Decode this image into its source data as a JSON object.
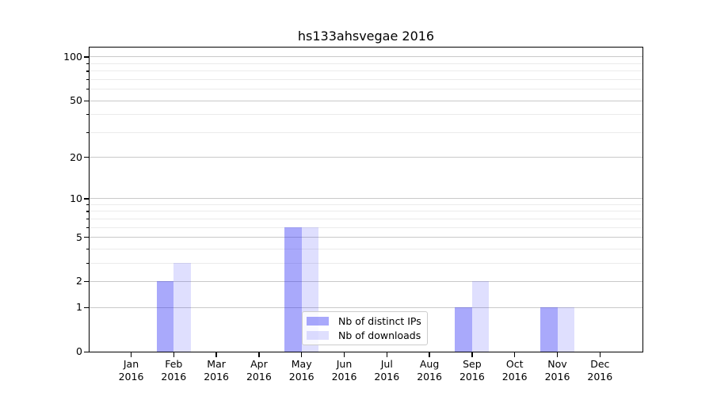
{
  "chart_data": {
    "type": "bar",
    "title": "hs133ahsvegae 2016",
    "categories": [
      "Jan 2016",
      "Feb 2016",
      "Mar 2016",
      "Apr 2016",
      "May 2016",
      "Jun 2016",
      "Jul 2016",
      "Aug 2016",
      "Sep 2016",
      "Oct 2016",
      "Nov 2016",
      "Dec 2016"
    ],
    "month_labels": [
      "Jan",
      "Feb",
      "Mar",
      "Apr",
      "May",
      "Jun",
      "Jul",
      "Aug",
      "Sep",
      "Oct",
      "Nov",
      "Dec"
    ],
    "year_label": "2016",
    "series": [
      {
        "name": "Nb of distinct IPs",
        "color": "rgba(40,40,245,0.40)",
        "values": [
          0,
          2,
          0,
          0,
          6,
          0,
          0,
          0,
          1,
          0,
          1,
          0
        ]
      },
      {
        "name": "Nb of downloads",
        "color": "rgba(40,40,245,0.15)",
        "values": [
          0,
          3,
          0,
          0,
          6,
          0,
          0,
          0,
          2,
          0,
          1,
          0
        ]
      }
    ],
    "y_axis": {
      "scale": "log1p",
      "major_ticks": [
        0,
        1,
        2,
        5,
        10,
        20,
        50,
        100
      ],
      "minor_ticks": [
        3,
        4,
        6,
        7,
        8,
        9,
        30,
        40,
        60,
        70,
        80,
        90
      ],
      "ylim": [
        0,
        115
      ]
    },
    "xlabel": "",
    "ylabel": "",
    "grid": "horizontal",
    "legend_position": "lower center"
  },
  "colors": {
    "grid_major": "#c9c9c9",
    "grid_minor": "#ebebeb",
    "axis_line": "#000000",
    "text": "#000000",
    "legend_border": "#cccccc",
    "legend_background": "rgba(255,255,255,0.8)"
  }
}
